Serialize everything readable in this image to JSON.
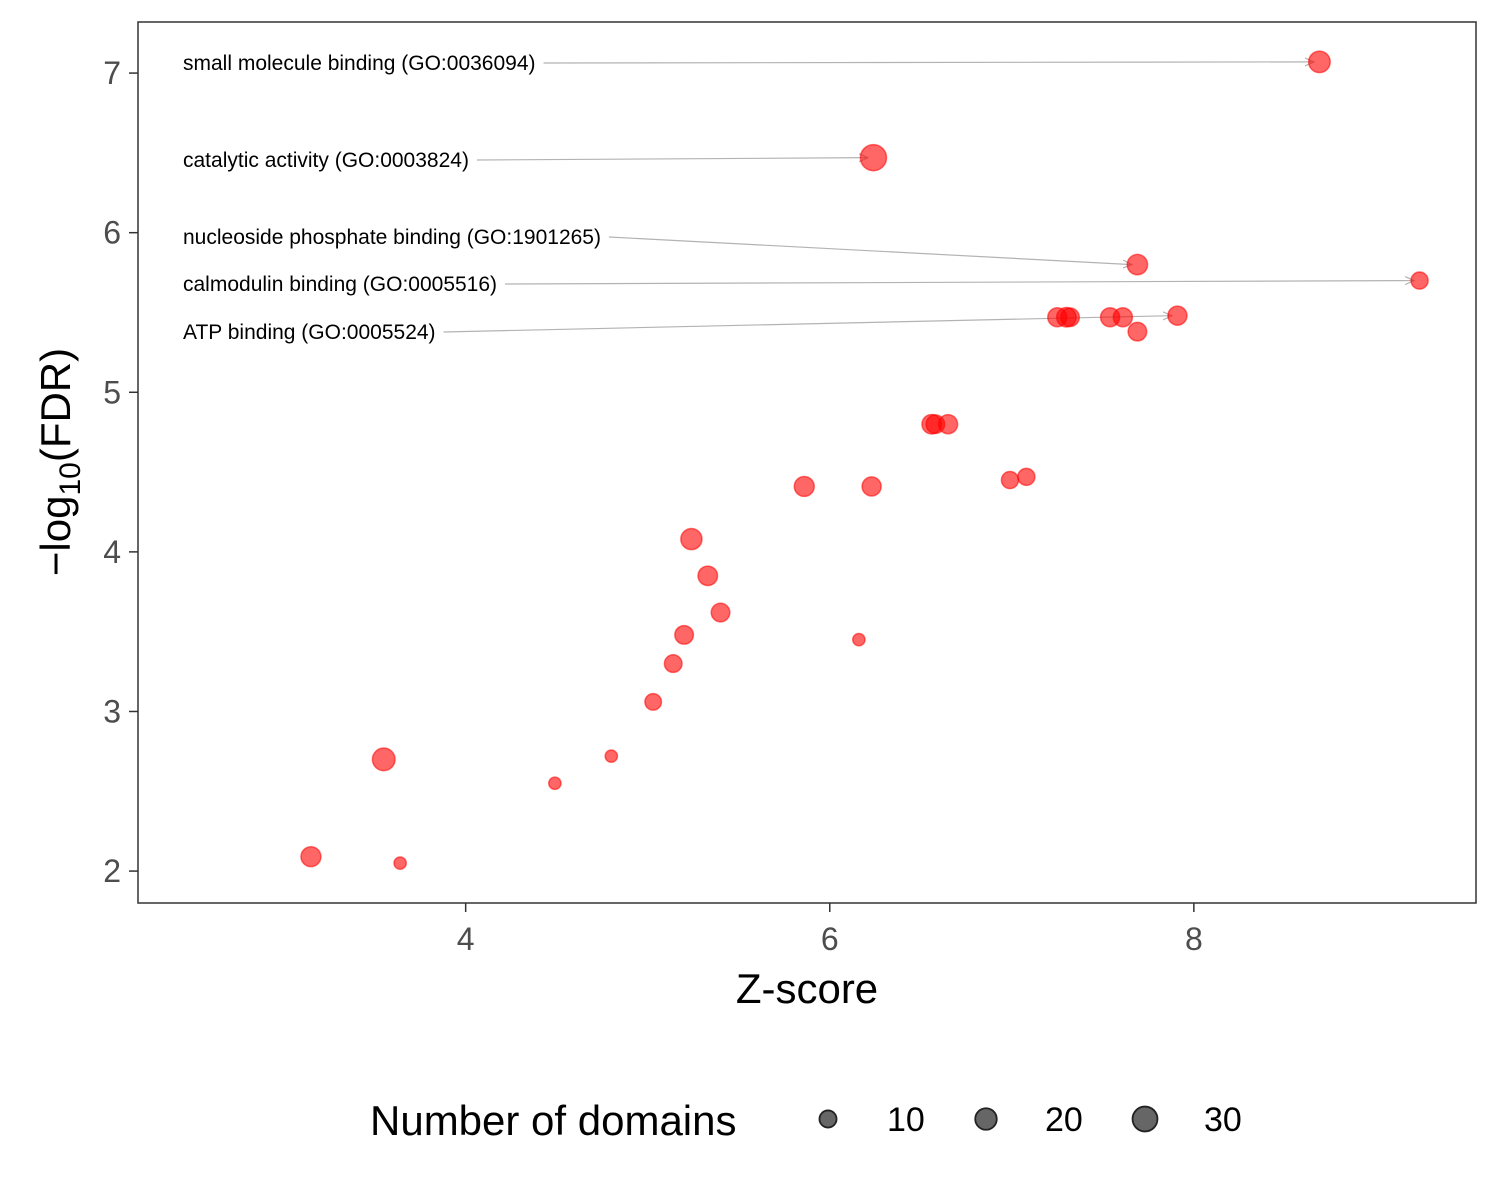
{
  "chart_data": {
    "type": "scatter",
    "xlabel": "Z-score",
    "ylabel_main": "−log",
    "ylabel_sub": "10",
    "ylabel_paren": "(FDR)",
    "xlim": [
      2.2,
      9.55
    ],
    "ylim": [
      1.8,
      7.32
    ],
    "x_ticks": [
      4,
      6,
      8
    ],
    "y_ticks": [
      2,
      3,
      4,
      5,
      6,
      7
    ],
    "grid": false,
    "point_color": "#FF0000",
    "point_opacity": 0.6,
    "points": [
      {
        "x": 8.69,
        "y": 7.07,
        "size": 20
      },
      {
        "x": 6.24,
        "y": 6.47,
        "size": 34
      },
      {
        "x": 7.69,
        "y": 5.8,
        "size": 17
      },
      {
        "x": 9.24,
        "y": 5.7,
        "size": 10
      },
      {
        "x": 7.25,
        "y": 5.47,
        "size": 14
      },
      {
        "x": 7.3,
        "y": 5.47,
        "size": 15
      },
      {
        "x": 7.32,
        "y": 5.47,
        "size": 13
      },
      {
        "x": 7.54,
        "y": 5.47,
        "size": 14
      },
      {
        "x": 7.61,
        "y": 5.47,
        "size": 14
      },
      {
        "x": 7.91,
        "y": 5.48,
        "size": 14
      },
      {
        "x": 7.69,
        "y": 5.38,
        "size": 13
      },
      {
        "x": 6.56,
        "y": 4.8,
        "size": 15
      },
      {
        "x": 6.58,
        "y": 4.8,
        "size": 13
      },
      {
        "x": 6.65,
        "y": 4.8,
        "size": 14
      },
      {
        "x": 5.86,
        "y": 4.41,
        "size": 16
      },
      {
        "x": 6.23,
        "y": 4.41,
        "size": 14
      },
      {
        "x": 6.99,
        "y": 4.45,
        "size": 10
      },
      {
        "x": 7.08,
        "y": 4.47,
        "size": 10
      },
      {
        "x": 5.24,
        "y": 4.08,
        "size": 19
      },
      {
        "x": 5.33,
        "y": 3.85,
        "size": 15
      },
      {
        "x": 5.4,
        "y": 3.62,
        "size": 13
      },
      {
        "x": 5.2,
        "y": 3.48,
        "size": 13
      },
      {
        "x": 5.14,
        "y": 3.3,
        "size": 11
      },
      {
        "x": 6.16,
        "y": 3.45,
        "size": 3
      },
      {
        "x": 5.03,
        "y": 3.06,
        "size": 9
      },
      {
        "x": 4.8,
        "y": 2.72,
        "size": 3
      },
      {
        "x": 4.49,
        "y": 2.55,
        "size": 3
      },
      {
        "x": 3.55,
        "y": 2.7,
        "size": 23
      },
      {
        "x": 3.15,
        "y": 2.09,
        "size": 16
      },
      {
        "x": 3.64,
        "y": 2.05,
        "size": 3
      }
    ],
    "annotations": [
      {
        "label": "small molecule binding (GO:0036094)",
        "x": 8.66,
        "y": 7.07
      },
      {
        "label": "catalytic activity (GO:0003824)",
        "x": 6.21,
        "y": 6.47
      },
      {
        "label": "nucleoside phosphate binding (GO:1901265)",
        "x": 7.66,
        "y": 5.8
      },
      {
        "label": "calmodulin binding (GO:0005516)",
        "x": 9.21,
        "y": 5.7
      },
      {
        "label": "ATP binding (GO:0005524)",
        "x": 7.88,
        "y": 5.48
      }
    ],
    "legend": {
      "title": "Number of domains",
      "position": "bottom",
      "marker_color": "#333333",
      "entries": [
        {
          "label": "10",
          "size": 10
        },
        {
          "label": "20",
          "size": 20
        },
        {
          "label": "30",
          "size": 30
        }
      ]
    }
  }
}
